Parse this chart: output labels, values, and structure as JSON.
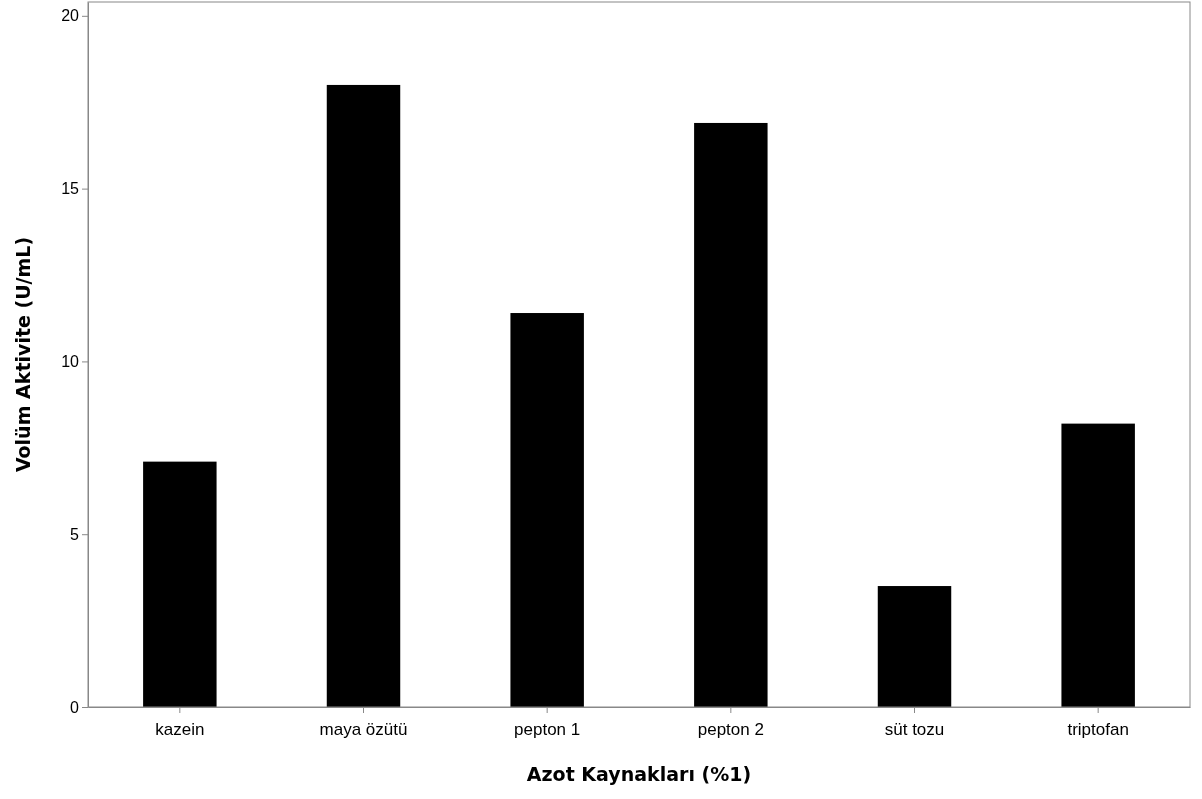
{
  "chart_data": {
    "type": "bar",
    "xlabel": "Azot Kaynakları (%1)",
    "ylabel": "Volüm Aktivite (U/mL)",
    "categories": [
      "kazein",
      "maya özütü",
      "pepton 1",
      "pepton 2",
      "süt tozu",
      "triptofan"
    ],
    "values": [
      7.1,
      18.0,
      11.4,
      16.9,
      3.5,
      8.2
    ],
    "color": "#000000",
    "ylim": [
      0,
      20.4
    ],
    "yticks": [
      0,
      5,
      10,
      15,
      20
    ],
    "grid": false
  }
}
